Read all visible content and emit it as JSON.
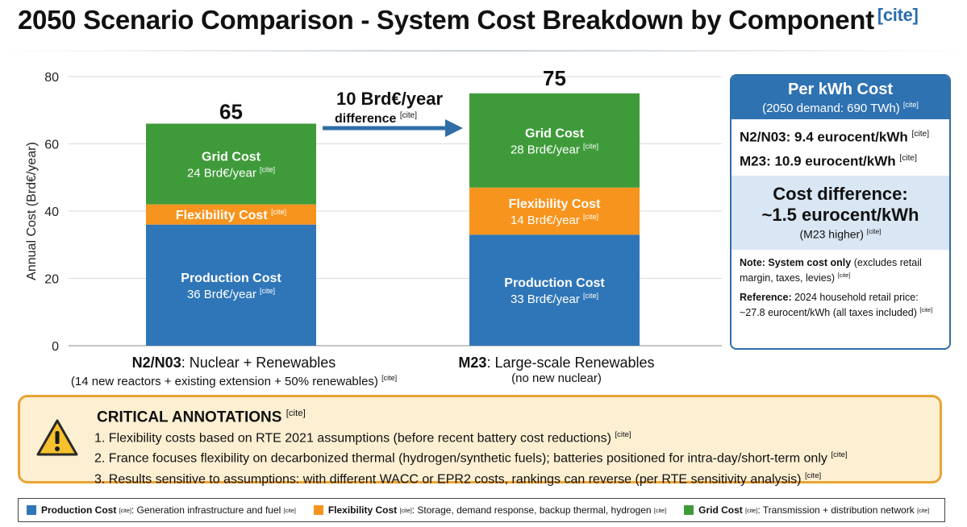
{
  "title": "2050 Scenario Comparison - System Cost Breakdown by Component",
  "cite": "[cite]",
  "colors": {
    "production": "#2f76b8",
    "flexibility": "#f7941d",
    "grid": "#3f9b3a",
    "arrow": "#2f6ea8"
  },
  "chart_data": {
    "type": "bar",
    "stacked": true,
    "ylabel": "Annual Cost (Brd€/year)",
    "ylim": [
      0,
      80
    ],
    "yticks": [
      0,
      20,
      40,
      60,
      80
    ],
    "grid": true,
    "categories": [
      "N2/N03: Nuclear + Renewables",
      "M23: Large-scale Renewables"
    ],
    "category_names": [
      "N2/N03",
      "M23"
    ],
    "category_descs": [
      ": Nuclear + Renewables",
      ": Large-scale Renewables"
    ],
    "category_subs": [
      "(14 new reactors + existing extension + 50% renewables)",
      "(no new nuclear)"
    ],
    "series": [
      {
        "name": "Production Cost",
        "values": [
          36,
          33
        ],
        "labels": [
          "36 Brd€/year",
          "33 Brd€/year"
        ]
      },
      {
        "name": "Flexibility Cost",
        "values": [
          6,
          14
        ],
        "labels": [
          "",
          "14 Brd€/year"
        ]
      },
      {
        "name": "Grid Cost",
        "values": [
          24,
          28
        ],
        "labels": [
          "24 Brd€/year",
          "28 Brd€/year"
        ]
      }
    ],
    "totals": [
      65,
      75
    ],
    "total_labels": [
      "65",
      "75"
    ],
    "difference": {
      "value": "10 Brd€/year",
      "label": "difference"
    }
  },
  "info": {
    "heading": "Per kWh Cost",
    "subheading": "(2050 demand: 690 TWh)",
    "n2": "N2/N03: 9.4 eurocent/kWh",
    "m23": "M23: 10.9 eurocent/kWh",
    "diff_line1": "Cost difference:",
    "diff_line2": "~1.5 eurocent/kWh",
    "diff_line3": "(M23 higher)",
    "note_bold": "Note: System cost only",
    "note_text": "(excludes retail margin, taxes, levies)",
    "ref_bold": "Reference:",
    "ref_text": "2024 household retail price: ~27.8 eurocent/kWh (all taxes included)"
  },
  "annotations": {
    "title": "CRITICAL ANNOTATIONS",
    "items": [
      "1.  Flexibility costs based on RTE 2021 assumptions (before recent battery cost reductions)",
      "2.  France focuses flexibility on decarbonized thermal (hydrogen/synthetic fuels); batteries positioned for intra-day/short-term only",
      "3.  Results sensitive to assumptions: with different WACC or EPR2 costs, rankings can reverse (per RTE sensitivity analysis)"
    ]
  },
  "legend": [
    {
      "name": "Production Cost",
      "desc": ": Generation infrastructure and fuel"
    },
    {
      "name": "Flexibility Cost",
      "desc": ": Storage, demand response, backup thermal, hydrogen"
    },
    {
      "name": "Grid Cost",
      "desc": ": Transmission + distribution network"
    }
  ]
}
